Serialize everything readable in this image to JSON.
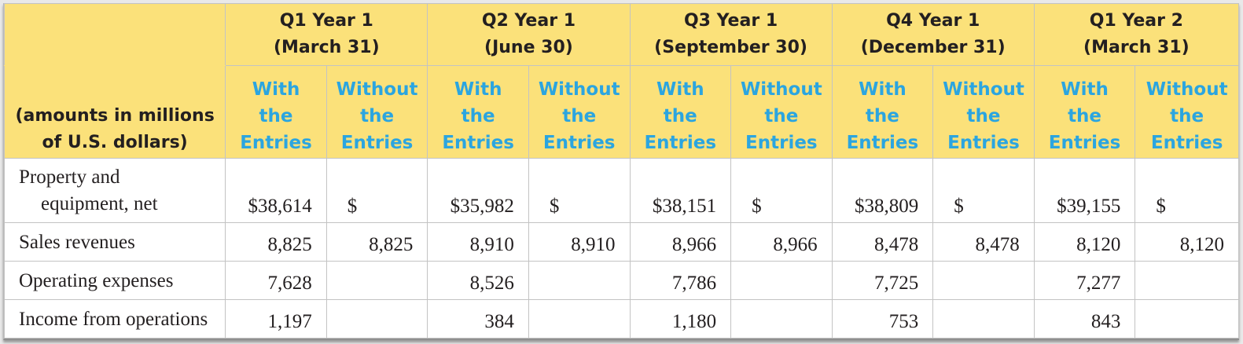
{
  "header": {
    "amounts_label_line1": "(amounts in millions",
    "amounts_label_line2": "of U.S. dollars)",
    "with_line1": "With",
    "with_line2": "the",
    "with_line3": "Entries",
    "without_line1": "Without",
    "without_line2": "the",
    "without_line3": "Entries"
  },
  "quarters": [
    {
      "title": "Q1 Year 1",
      "date": "(March 31)"
    },
    {
      "title": "Q2 Year 1",
      "date": "(June 30)"
    },
    {
      "title": "Q3 Year 1",
      "date": "(September 30)"
    },
    {
      "title": "Q4 Year 1",
      "date": "(December 31)"
    },
    {
      "title": "Q1 Year 2",
      "date": "(March 31)"
    }
  ],
  "rows": [
    {
      "label_line1": "Property and",
      "label_line2": "equipment, net",
      "values": [
        {
          "with": "$38,614",
          "without": "$"
        },
        {
          "with": "$35,982",
          "without": "$"
        },
        {
          "with": "$38,151",
          "without": "$"
        },
        {
          "with": "$38,809",
          "without": "$"
        },
        {
          "with": "$39,155",
          "without": "$"
        }
      ]
    },
    {
      "label_line1": "Sales revenues",
      "values": [
        {
          "with": "8,825",
          "without": "8,825"
        },
        {
          "with": "8,910",
          "without": "8,910"
        },
        {
          "with": "8,966",
          "without": "8,966"
        },
        {
          "with": "8,478",
          "without": "8,478"
        },
        {
          "with": "8,120",
          "without": "8,120"
        }
      ]
    },
    {
      "label_line1": "Operating expenses",
      "values": [
        {
          "with": "7,628",
          "without": ""
        },
        {
          "with": "8,526",
          "without": ""
        },
        {
          "with": "7,786",
          "without": ""
        },
        {
          "with": "7,725",
          "without": ""
        },
        {
          "with": "7,277",
          "without": ""
        }
      ]
    },
    {
      "label_line1": "Income from operations",
      "values": [
        {
          "with": "1,197",
          "without": ""
        },
        {
          "with": "384",
          "without": ""
        },
        {
          "with": "1,180",
          "without": ""
        },
        {
          "with": "753",
          "without": ""
        },
        {
          "with": "843",
          "without": ""
        }
      ]
    }
  ]
}
